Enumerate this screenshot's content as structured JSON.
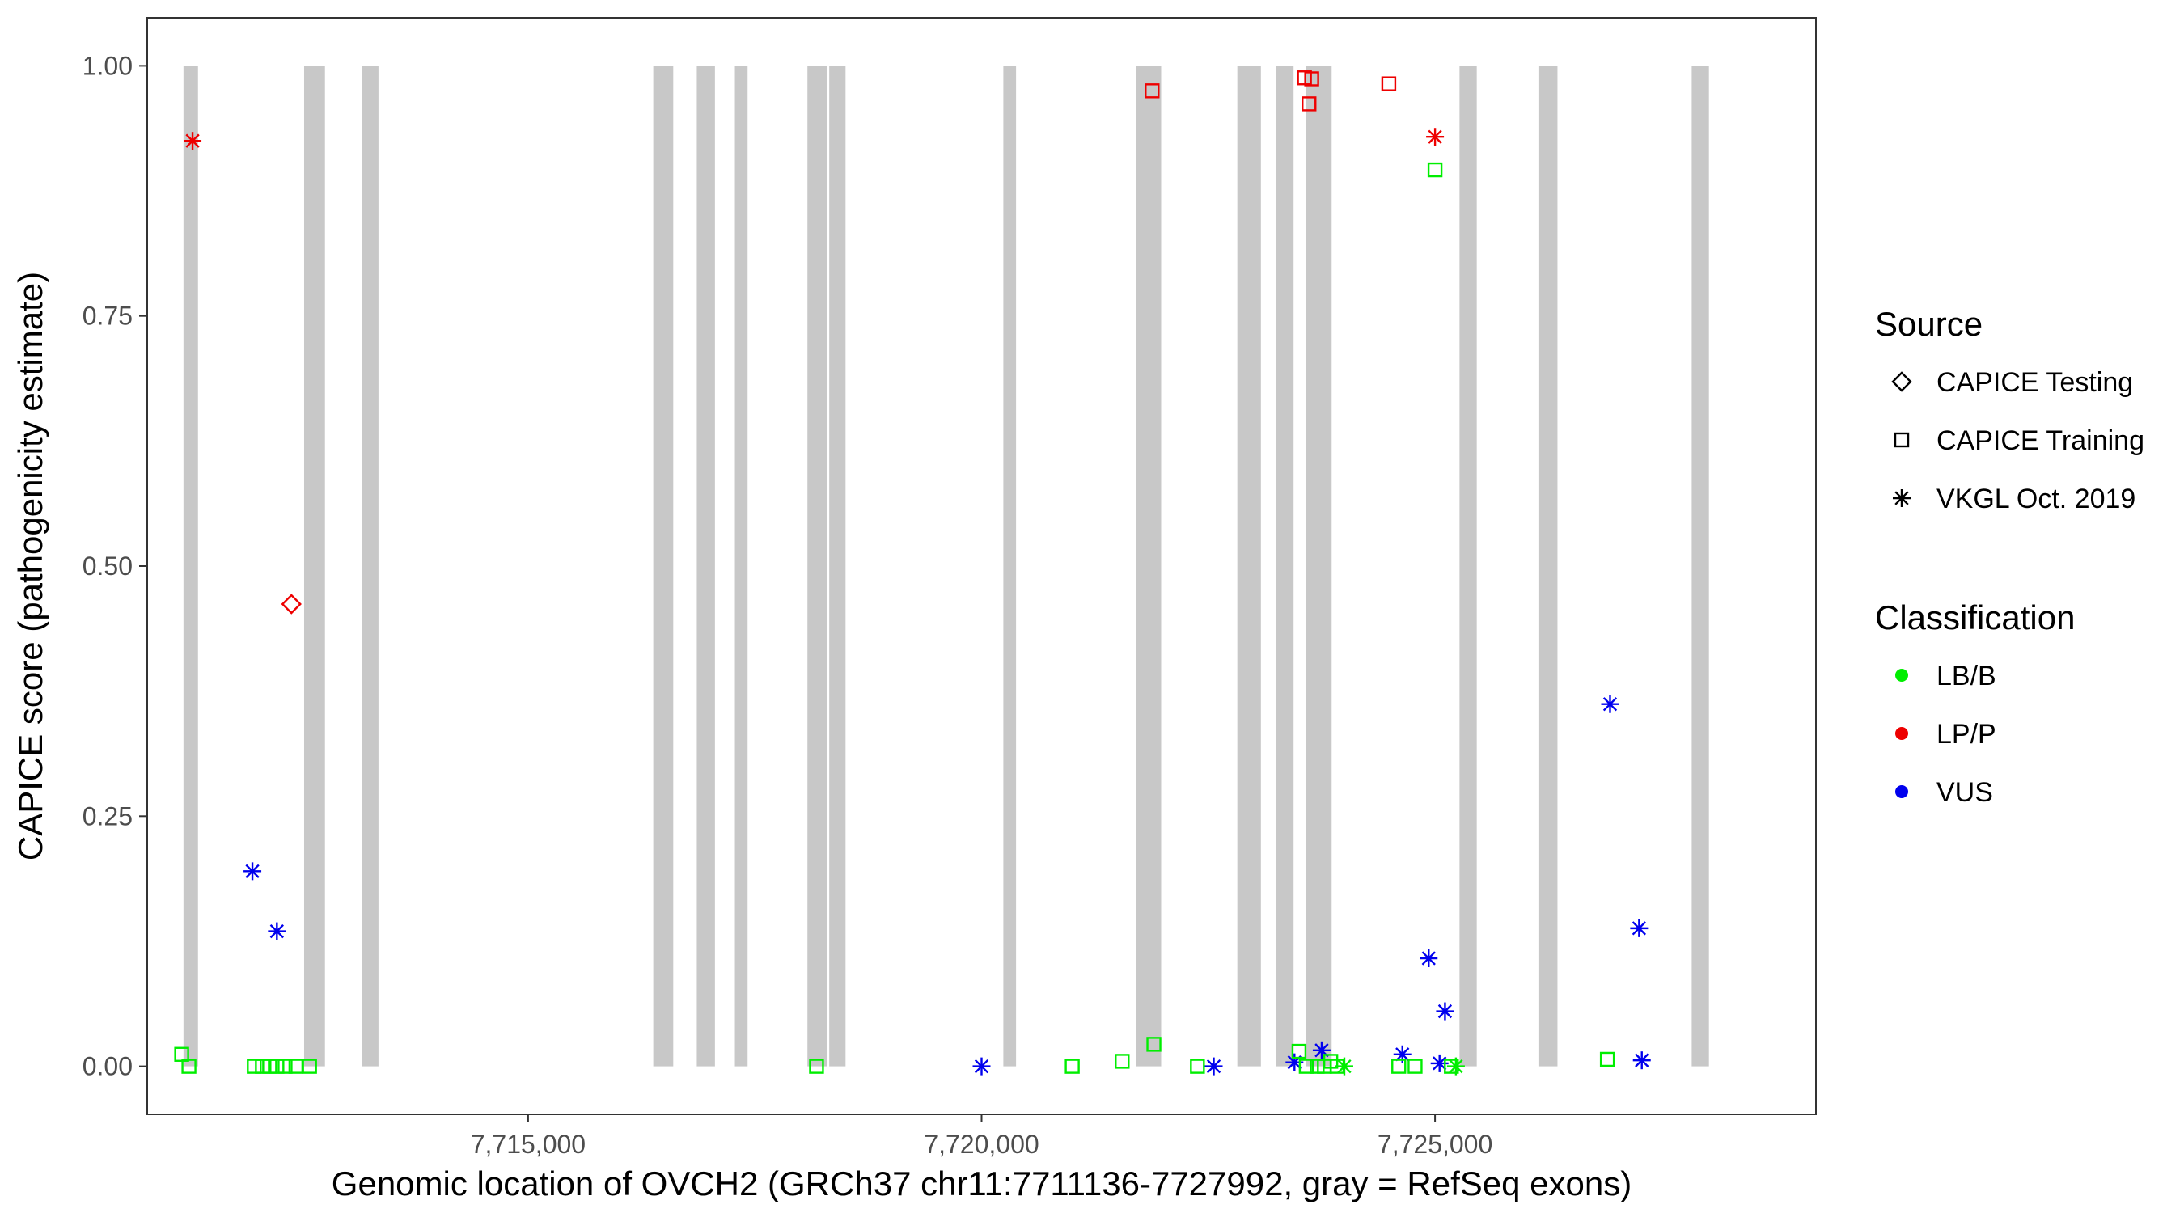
{
  "chart_data": {
    "type": "scatter",
    "xlabel": "Genomic location of OVCH2 (GRCh37 chr11:7711136-7727992, gray = RefSeq exons)",
    "ylabel": "CAPICE score (pathogenicity estimate)",
    "xlim": [
      7710800,
      7729200
    ],
    "ylim": [
      -0.048,
      1.048
    ],
    "x_ticks": [
      7715000,
      7720000,
      7725000
    ],
    "x_tick_labels": [
      "7,715,000",
      "7,720,000",
      "7,725,000"
    ],
    "y_ticks": [
      0,
      0.25,
      0.5,
      0.75,
      1.0
    ],
    "y_tick_labels": [
      "0.00",
      "0.25",
      "0.50",
      "0.75",
      "1.00"
    ],
    "grid": false,
    "exons": [
      [
        7711200,
        7711360
      ],
      [
        7712530,
        7712760
      ],
      [
        7713170,
        7713350
      ],
      [
        7716380,
        7716600
      ],
      [
        7716860,
        7717060
      ],
      [
        7717280,
        7717420
      ],
      [
        7718080,
        7718300
      ],
      [
        7718320,
        7718500
      ],
      [
        7720240,
        7720380
      ],
      [
        7721700,
        7721980
      ],
      [
        7722820,
        7723080
      ],
      [
        7723250,
        7723440
      ],
      [
        7723580,
        7723860
      ],
      [
        7725270,
        7725460
      ],
      [
        7726140,
        7726350
      ],
      [
        7727830,
        7728020
      ]
    ],
    "legend": {
      "placement": "right",
      "source_title": "Source",
      "source_items": [
        {
          "label": "CAPICE Testing",
          "shape": "diamond"
        },
        {
          "label": "CAPICE Training",
          "shape": "square"
        },
        {
          "label": "VKGL Oct. 2019",
          "shape": "asterisk"
        }
      ],
      "class_title": "Classification",
      "class_items": [
        {
          "label": "LB/B",
          "color": "#00ee00"
        },
        {
          "label": "LP/P",
          "color": "#ee0000"
        },
        {
          "label": "VUS",
          "color": "#0000ee"
        }
      ]
    },
    "colors": {
      "LB/B": "#00ee00",
      "LP/P": "#ee0000",
      "VUS": "#0000ee"
    },
    "points": [
      {
        "x": 7711300,
        "y": 0.925,
        "shape": "asterisk",
        "cls": "LP/P"
      },
      {
        "x": 7712390,
        "y": 0.462,
        "shape": "diamond",
        "cls": "LP/P"
      },
      {
        "x": 7721880,
        "y": 0.975,
        "shape": "square",
        "cls": "LP/P"
      },
      {
        "x": 7723560,
        "y": 0.988,
        "shape": "square",
        "cls": "LP/P"
      },
      {
        "x": 7723640,
        "y": 0.987,
        "shape": "square",
        "cls": "LP/P"
      },
      {
        "x": 7723610,
        "y": 0.962,
        "shape": "square",
        "cls": "LP/P"
      },
      {
        "x": 7724490,
        "y": 0.982,
        "shape": "square",
        "cls": "LP/P"
      },
      {
        "x": 7725000,
        "y": 0.929,
        "shape": "asterisk",
        "cls": "LP/P"
      },
      {
        "x": 7711960,
        "y": 0.195,
        "shape": "asterisk",
        "cls": "VUS"
      },
      {
        "x": 7712230,
        "y": 0.135,
        "shape": "asterisk",
        "cls": "VUS"
      },
      {
        "x": 7720000,
        "y": 0.0,
        "shape": "asterisk",
        "cls": "VUS"
      },
      {
        "x": 7722560,
        "y": 0.0,
        "shape": "asterisk",
        "cls": "VUS"
      },
      {
        "x": 7723450,
        "y": 0.004,
        "shape": "asterisk",
        "cls": "VUS"
      },
      {
        "x": 7723750,
        "y": 0.016,
        "shape": "asterisk",
        "cls": "VUS"
      },
      {
        "x": 7724640,
        "y": 0.012,
        "shape": "asterisk",
        "cls": "VUS"
      },
      {
        "x": 7724930,
        "y": 0.108,
        "shape": "asterisk",
        "cls": "VUS"
      },
      {
        "x": 7725050,
        "y": 0.003,
        "shape": "asterisk",
        "cls": "VUS"
      },
      {
        "x": 7725110,
        "y": 0.055,
        "shape": "asterisk",
        "cls": "VUS"
      },
      {
        "x": 7726930,
        "y": 0.362,
        "shape": "asterisk",
        "cls": "VUS"
      },
      {
        "x": 7727250,
        "y": 0.138,
        "shape": "asterisk",
        "cls": "VUS"
      },
      {
        "x": 7727280,
        "y": 0.006,
        "shape": "asterisk",
        "cls": "VUS"
      },
      {
        "x": 7711180,
        "y": 0.012,
        "shape": "square",
        "cls": "LB/B"
      },
      {
        "x": 7711260,
        "y": 0.0,
        "shape": "square",
        "cls": "LB/B"
      },
      {
        "x": 7711980,
        "y": 0.0,
        "shape": "square",
        "cls": "LB/B"
      },
      {
        "x": 7712070,
        "y": 0.0,
        "shape": "square",
        "cls": "LB/B"
      },
      {
        "x": 7712150,
        "y": 0.0,
        "shape": "square",
        "cls": "LB/B"
      },
      {
        "x": 7712230,
        "y": 0.0,
        "shape": "square",
        "cls": "LB/B"
      },
      {
        "x": 7712320,
        "y": 0.0,
        "shape": "square",
        "cls": "LB/B"
      },
      {
        "x": 7712440,
        "y": 0.0,
        "shape": "square",
        "cls": "LB/B"
      },
      {
        "x": 7712590,
        "y": 0.0,
        "shape": "square",
        "cls": "LB/B"
      },
      {
        "x": 7718180,
        "y": 0.0,
        "shape": "square",
        "cls": "LB/B"
      },
      {
        "x": 7721000,
        "y": 0.0,
        "shape": "square",
        "cls": "LB/B"
      },
      {
        "x": 7721550,
        "y": 0.005,
        "shape": "square",
        "cls": "LB/B"
      },
      {
        "x": 7721900,
        "y": 0.022,
        "shape": "square",
        "cls": "LB/B"
      },
      {
        "x": 7722380,
        "y": 0.0,
        "shape": "square",
        "cls": "LB/B"
      },
      {
        "x": 7723500,
        "y": 0.015,
        "shape": "square",
        "cls": "LB/B"
      },
      {
        "x": 7723580,
        "y": 0.0,
        "shape": "square",
        "cls": "LB/B"
      },
      {
        "x": 7723700,
        "y": 0.0,
        "shape": "square",
        "cls": "LB/B"
      },
      {
        "x": 7723780,
        "y": 0.0,
        "shape": "square",
        "cls": "LB/B"
      },
      {
        "x": 7723850,
        "y": 0.005,
        "shape": "square",
        "cls": "LB/B"
      },
      {
        "x": 7723920,
        "y": 0.0,
        "shape": "square",
        "cls": "LB/B"
      },
      {
        "x": 7724000,
        "y": 0.0,
        "shape": "asterisk",
        "cls": "LB/B"
      },
      {
        "x": 7724600,
        "y": 0.0,
        "shape": "square",
        "cls": "LB/B"
      },
      {
        "x": 7724780,
        "y": 0.0,
        "shape": "square",
        "cls": "LB/B"
      },
      {
        "x": 7725000,
        "y": 0.896,
        "shape": "square",
        "cls": "LB/B"
      },
      {
        "x": 7725180,
        "y": 0.0,
        "shape": "square",
        "cls": "LB/B"
      },
      {
        "x": 7725230,
        "y": 0.0,
        "shape": "asterisk",
        "cls": "LB/B"
      },
      {
        "x": 7726900,
        "y": 0.007,
        "shape": "square",
        "cls": "LB/B"
      }
    ]
  }
}
